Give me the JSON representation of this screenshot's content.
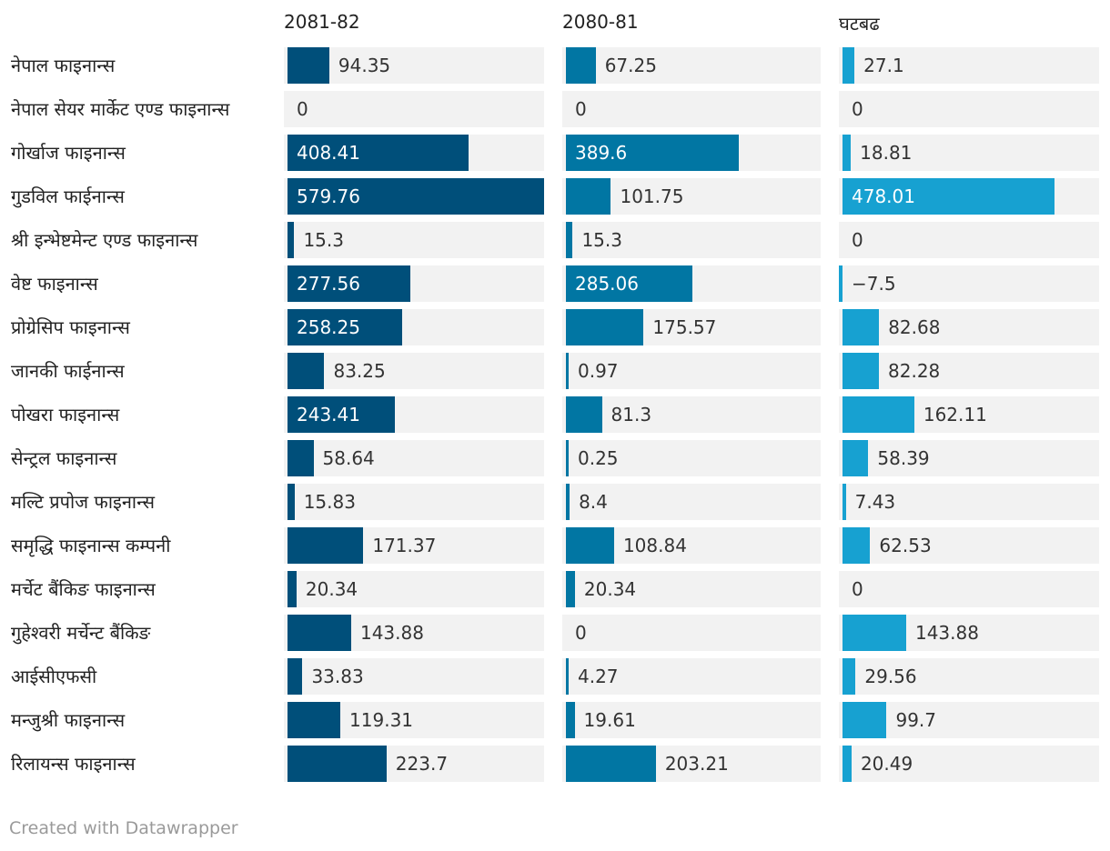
{
  "chart_data": {
    "type": "bar",
    "orientation": "horizontal",
    "layout": "split-columns",
    "categories": [
      "नेपाल फाइनान्स",
      "नेपाल सेयर मार्केट एण्ड फाइनान्स",
      "गोर्खाज फाइनान्स",
      "गुडविल फाईनान्स",
      "श्री इन्भेष्टमेन्ट एण्ड फाइनान्स",
      "वेष्ट फाइनान्स",
      "प्रोग्रेसिप फाइनान्स",
      "जानकी फाईनान्स",
      "पोखरा फाइनान्स",
      "सेन्ट्रल फाइनान्स",
      "मल्टि प्रपोज फाइनान्स",
      "समृद्धि फाइनान्स कम्पनी",
      "मर्चेट बैंकिङ फाइनान्स",
      "गुहेश्वरी मर्चेन्ट बैंकिङ",
      "आईसीएफसी",
      "मन्जुश्री फाइनान्स",
      "रिलायन्स फाइनान्स"
    ],
    "series": [
      {
        "name": "2081-82",
        "color": "#004f7a",
        "values": [
          94.35,
          0,
          408.41,
          579.76,
          15.3,
          277.56,
          258.25,
          83.25,
          243.41,
          58.64,
          15.83,
          171.37,
          20.34,
          143.88,
          33.83,
          119.31,
          223.7
        ],
        "labels": [
          "94.35",
          "0",
          "408.41",
          "579.76",
          "15.3",
          "277.56",
          "258.25",
          "83.25",
          "243.41",
          "58.64",
          "15.83",
          "171.37",
          "20.34",
          "143.88",
          "33.83",
          "119.31",
          "223.7"
        ],
        "range": [
          0,
          579.76
        ]
      },
      {
        "name": "2080-81",
        "color": "#0176a3",
        "values": [
          67.25,
          0,
          389.6,
          101.75,
          15.3,
          285.06,
          175.57,
          0.97,
          81.3,
          0.25,
          8.4,
          108.84,
          20.34,
          0,
          4.27,
          19.61,
          203.21
        ],
        "labels": [
          "67.25",
          "0",
          "389.6",
          "101.75",
          "15.3",
          "285.06",
          "175.57",
          "0.97",
          "81.3",
          "0.25",
          "8.4",
          "108.84",
          "20.34",
          "0",
          "4.27",
          "19.61",
          "203.21"
        ],
        "range": [
          0,
          579.76
        ]
      },
      {
        "name": "घटबढ",
        "color": "#17a1d1",
        "values": [
          27.1,
          0,
          18.81,
          478.01,
          0,
          -7.5,
          82.68,
          82.28,
          162.11,
          58.39,
          7.43,
          62.53,
          0,
          143.88,
          29.56,
          99.7,
          20.49
        ],
        "labels": [
          "27.1",
          "0",
          "18.81",
          "478.01",
          "0",
          "−7.5",
          "82.68",
          "82.28",
          "162.11",
          "58.39",
          "7.43",
          "62.53",
          "0",
          "143.88",
          "29.56",
          "99.7",
          "20.49"
        ],
        "range": [
          0,
          579.76
        ]
      }
    ],
    "title": "",
    "xlabel": "",
    "ylabel": ""
  },
  "footer": {
    "credit": "Created with Datawrapper"
  }
}
